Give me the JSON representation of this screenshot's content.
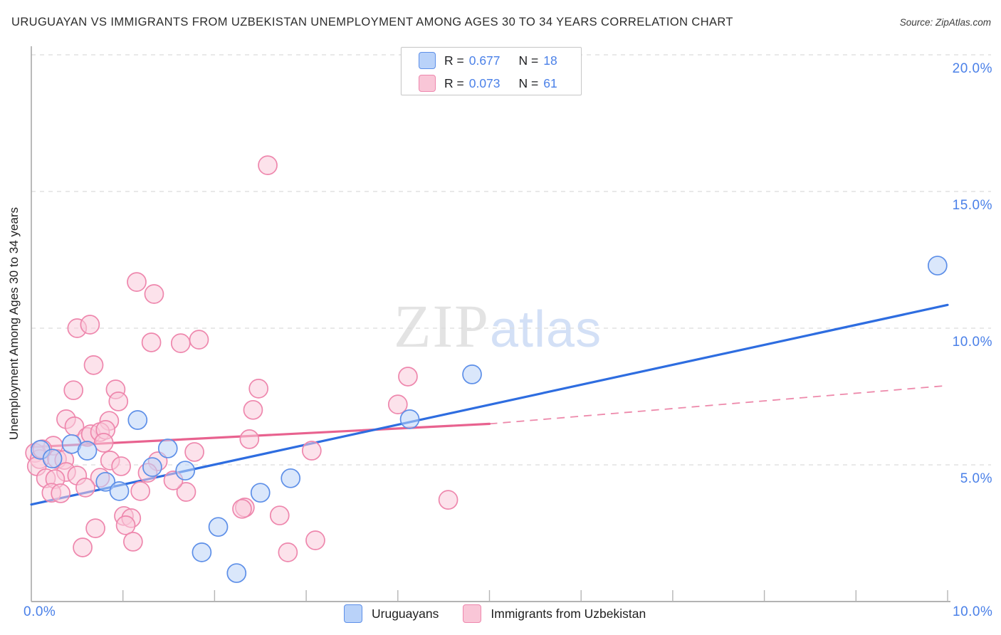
{
  "header": {
    "title": "URUGUAYAN VS IMMIGRANTS FROM UZBEKISTAN UNEMPLOYMENT AMONG AGES 30 TO 34 YEARS CORRELATION CHART",
    "source": "Source: ZipAtlas.com"
  },
  "axes": {
    "y_title": "Unemployment Among Ages 30 to 34 years"
  },
  "watermark": {
    "zip": "ZIP",
    "atlas": "atlas"
  },
  "legend_box": {
    "rows": [
      {
        "r_label": "R =",
        "r_value": "0.677",
        "n_label": "N =",
        "n_value": "18"
      },
      {
        "r_label": "R =",
        "r_value": "0.073",
        "n_label": "N =",
        "n_value": "61"
      }
    ]
  },
  "bottom_legend": {
    "items": [
      {
        "label": "Uruguayans"
      },
      {
        "label": "Immigrants from Uzbekistan"
      }
    ]
  },
  "chart_data": {
    "type": "scatter",
    "title": "Uruguayan vs Immigrants from Uzbekistan Unemployment Among Ages 30 to 34 Years",
    "xlabel": "",
    "ylabel": "Unemployment Among Ages 30 to 34 years",
    "x_axis": {
      "min": 0,
      "max": 10,
      "n_ticks": 11,
      "tick_labels": [
        {
          "label": "0.0%",
          "pos": "left"
        },
        {
          "label": "10.0%",
          "pos": "right"
        }
      ]
    },
    "y_axis": {
      "min": 0,
      "max": 20.2,
      "grid": true,
      "ticks": [
        {
          "value": 20,
          "label": "20.0%"
        },
        {
          "value": 15,
          "label": "15.0%"
        },
        {
          "value": 10,
          "label": "10.0%"
        },
        {
          "value": 5,
          "label": "5.0%"
        }
      ]
    },
    "colors": {
      "grid": "#dcdcdc",
      "axis": "#a8a8a8",
      "tick": "#b5b5b5"
    },
    "series": [
      {
        "name": "Immigrants from Uzbekistan",
        "R": 0.073,
        "N": 61,
        "marker_fill": "#f9cadb",
        "marker_stroke": "#ee87ad",
        "trend_color": "#e8628f",
        "trend_solid": {
          "x": [
            0,
            5
          ],
          "y": [
            5.65,
            6.5
          ]
        },
        "trend_dashed": {
          "x": [
            5,
            10
          ],
          "y": [
            6.5,
            7.9
          ]
        },
        "points": [
          [
            2.58,
            15.96
          ],
          [
            1.15,
            11.69
          ],
          [
            1.34,
            11.25
          ],
          [
            0.5,
            10.0
          ],
          [
            0.64,
            10.13
          ],
          [
            1.31,
            9.48
          ],
          [
            1.63,
            9.45
          ],
          [
            1.83,
            9.58
          ],
          [
            0.68,
            8.65
          ],
          [
            0.46,
            7.73
          ],
          [
            0.92,
            7.76
          ],
          [
            0.95,
            7.32
          ],
          [
            2.48,
            7.79
          ],
          [
            2.42,
            7.01
          ],
          [
            4.11,
            8.23
          ],
          [
            4.0,
            7.21
          ],
          [
            4.55,
            3.72
          ],
          [
            2.38,
            5.94
          ],
          [
            3.06,
            5.52
          ],
          [
            2.33,
            3.44
          ],
          [
            2.71,
            3.15
          ],
          [
            3.1,
            2.24
          ],
          [
            2.8,
            1.8
          ],
          [
            0.38,
            6.67
          ],
          [
            0.47,
            6.41
          ],
          [
            0.85,
            6.61
          ],
          [
            0.61,
            6.02
          ],
          [
            0.65,
            6.12
          ],
          [
            0.75,
            6.2
          ],
          [
            0.81,
            6.28
          ],
          [
            0.79,
            5.81
          ],
          [
            0.04,
            5.44
          ],
          [
            0.09,
            5.21
          ],
          [
            0.06,
            4.95
          ],
          [
            0.24,
            5.7
          ],
          [
            0.28,
            5.21
          ],
          [
            0.36,
            5.18
          ],
          [
            0.38,
            4.74
          ],
          [
            0.16,
            4.51
          ],
          [
            0.26,
            4.48
          ],
          [
            0.22,
            3.98
          ],
          [
            0.32,
            3.96
          ],
          [
            0.12,
            5.57
          ],
          [
            0.86,
            5.16
          ],
          [
            0.98,
            4.95
          ],
          [
            1.38,
            5.13
          ],
          [
            1.27,
            4.71
          ],
          [
            0.75,
            4.53
          ],
          [
            0.5,
            4.61
          ],
          [
            0.59,
            4.17
          ],
          [
            1.19,
            4.04
          ],
          [
            1.69,
            4.01
          ],
          [
            1.55,
            4.43
          ],
          [
            1.78,
            5.47
          ],
          [
            1.01,
            3.13
          ],
          [
            1.09,
            3.05
          ],
          [
            1.03,
            2.79
          ],
          [
            0.7,
            2.68
          ],
          [
            0.56,
            1.98
          ],
          [
            1.11,
            2.19
          ],
          [
            2.3,
            3.39
          ]
        ]
      },
      {
        "name": "Uruguayans",
        "R": 0.677,
        "N": 18,
        "marker_fill": "#bcd4f8",
        "marker_stroke": "#5d8fe8",
        "trend_color": "#2e6de0",
        "trend_solid": {
          "x": [
            0,
            10
          ],
          "y": [
            3.55,
            10.85
          ]
        },
        "points": [
          [
            0.1,
            5.55
          ],
          [
            0.23,
            5.23
          ],
          [
            0.44,
            5.76
          ],
          [
            0.61,
            5.52
          ],
          [
            1.16,
            6.64
          ],
          [
            1.32,
            4.92
          ],
          [
            1.49,
            5.6
          ],
          [
            1.68,
            4.79
          ],
          [
            0.81,
            4.38
          ],
          [
            0.96,
            4.04
          ],
          [
            2.5,
            3.98
          ],
          [
            2.04,
            2.73
          ],
          [
            1.86,
            1.8
          ],
          [
            2.24,
            1.04
          ],
          [
            2.83,
            4.51
          ],
          [
            4.13,
            6.67
          ],
          [
            4.81,
            8.31
          ],
          [
            9.89,
            12.29
          ]
        ]
      }
    ]
  }
}
